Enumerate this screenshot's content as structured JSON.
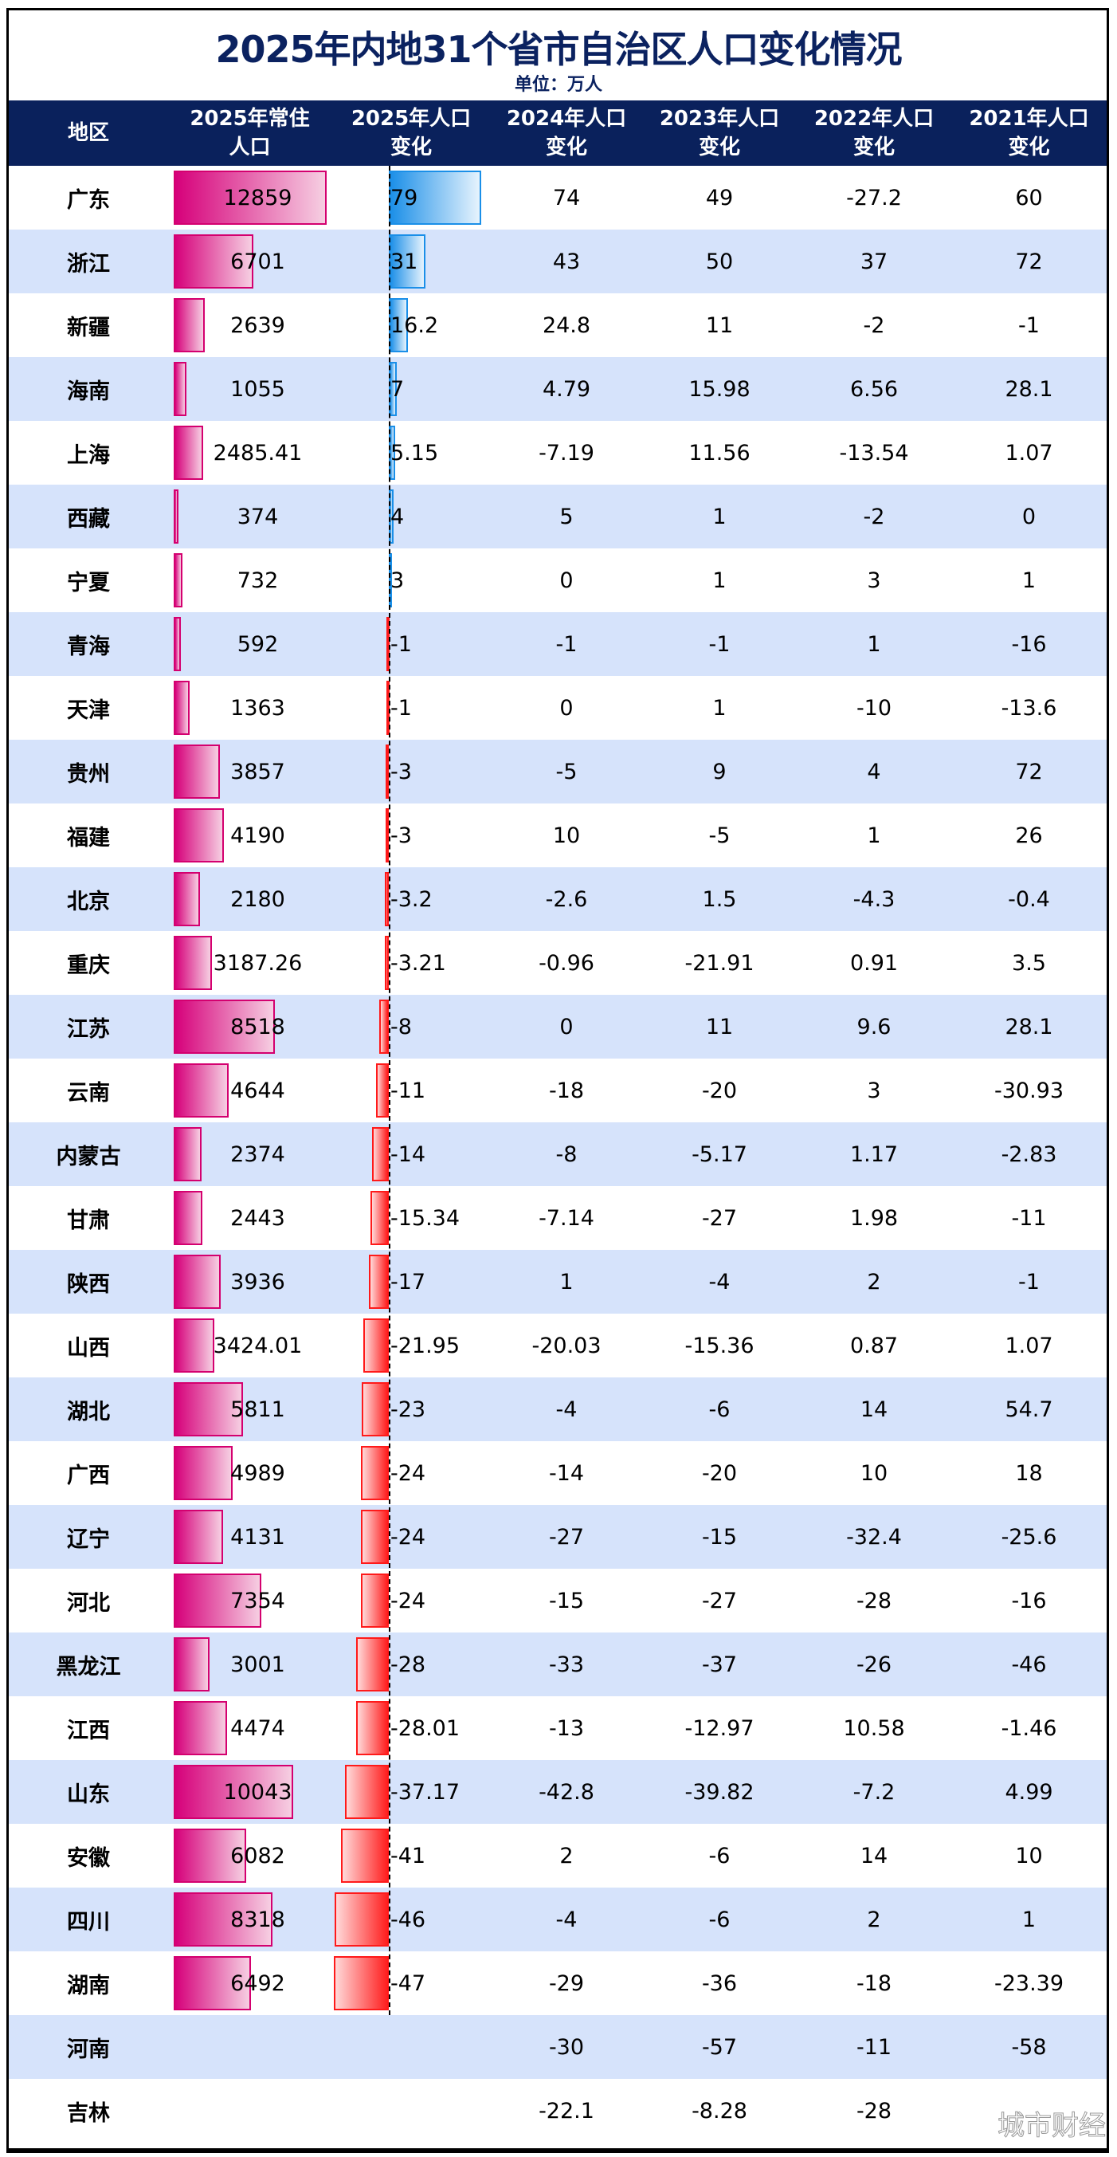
{
  "title": "2025年内地31个省市自治区人口变化情况",
  "unit": "单位：万人",
  "watermark": "城市财经",
  "colors": {
    "header_bg": "#0a215c",
    "alt_row": "#d6e3fb",
    "population_bar": "#d6007a",
    "increase_bar": "#1b8fe8",
    "decrease_bar": "#ff1f1f"
  },
  "headers": [
    "地区",
    "2025年常住\n人口",
    "2025年人口\n变化",
    "2024年人口\n变化",
    "2023年人口\n变化",
    "2022年人口\n变化",
    "2021年人口\n变化"
  ],
  "chart_data": {
    "type": "table",
    "columns": [
      "地区",
      "2025年常住人口",
      "2025年人口变化",
      "2024年人口变化",
      "2023年人口变化",
      "2022年人口变化",
      "2021年人口变化"
    ],
    "rows": [
      [
        "广东",
        "12859",
        "79",
        "74",
        "49",
        "-27.2",
        "60"
      ],
      [
        "浙江",
        "6701",
        "31",
        "43",
        "50",
        "37",
        "72"
      ],
      [
        "新疆",
        "2639",
        "16.2",
        "24.8",
        "11",
        "-2",
        "-1"
      ],
      [
        "海南",
        "1055",
        "7",
        "4.79",
        "15.98",
        "6.56",
        "28.1"
      ],
      [
        "上海",
        "2485.41",
        "5.15",
        "-7.19",
        "11.56",
        "-13.54",
        "1.07"
      ],
      [
        "西藏",
        "374",
        "4",
        "5",
        "1",
        "-2",
        "0"
      ],
      [
        "宁夏",
        "732",
        "3",
        "0",
        "1",
        "3",
        "1"
      ],
      [
        "青海",
        "592",
        "-1",
        "-1",
        "-1",
        "1",
        "-16"
      ],
      [
        "天津",
        "1363",
        "-1",
        "0",
        "1",
        "-10",
        "-13.6"
      ],
      [
        "贵州",
        "3857",
        "-3",
        "-5",
        "9",
        "4",
        "72"
      ],
      [
        "福建",
        "4190",
        "-3",
        "10",
        "-5",
        "1",
        "26"
      ],
      [
        "北京",
        "2180",
        "-3.2",
        "-2.6",
        "1.5",
        "-4.3",
        "-0.4"
      ],
      [
        "重庆",
        "3187.26",
        "-3.21",
        "-0.96",
        "-21.91",
        "0.91",
        "3.5"
      ],
      [
        "江苏",
        "8518",
        "-8",
        "0",
        "11",
        "9.6",
        "28.1"
      ],
      [
        "云南",
        "4644",
        "-11",
        "-18",
        "-20",
        "3",
        "-30.93"
      ],
      [
        "内蒙古",
        "2374",
        "-14",
        "-8",
        "-5.17",
        "1.17",
        "-2.83"
      ],
      [
        "甘肃",
        "2443",
        "-15.34",
        "-7.14",
        "-27",
        "1.98",
        "-11"
      ],
      [
        "陕西",
        "3936",
        "-17",
        "1",
        "-4",
        "2",
        "-1"
      ],
      [
        "山西",
        "3424.01",
        "-21.95",
        "-20.03",
        "-15.36",
        "0.87",
        "1.07"
      ],
      [
        "湖北",
        "5811",
        "-23",
        "-4",
        "-6",
        "14",
        "54.7"
      ],
      [
        "广西",
        "4989",
        "-24",
        "-14",
        "-20",
        "10",
        "18"
      ],
      [
        "辽宁",
        "4131",
        "-24",
        "-27",
        "-15",
        "-32.4",
        "-25.6"
      ],
      [
        "河北",
        "7354",
        "-24",
        "-15",
        "-27",
        "-28",
        "-16"
      ],
      [
        "黑龙江",
        "3001",
        "-28",
        "-33",
        "-37",
        "-26",
        "-46"
      ],
      [
        "江西",
        "4474",
        "-28.01",
        "-13",
        "-12.97",
        "10.58",
        "-1.46"
      ],
      [
        "山东",
        "10043",
        "-37.17",
        "-42.8",
        "-39.82",
        "-7.2",
        "4.99"
      ],
      [
        "安徽",
        "6082",
        "-41",
        "2",
        "-6",
        "14",
        "10"
      ],
      [
        "四川",
        "8318",
        "-46",
        "-4",
        "-6",
        "2",
        "1"
      ],
      [
        "湖南",
        "6492",
        "-47",
        "-29",
        "-36",
        "-18",
        "-23.39"
      ],
      [
        "河南",
        "",
        "",
        "-30",
        "-57",
        "-11",
        "-58"
      ],
      [
        "吉林",
        "",
        "",
        "-22.1",
        "-8.28",
        "-28",
        ""
      ]
    ]
  }
}
